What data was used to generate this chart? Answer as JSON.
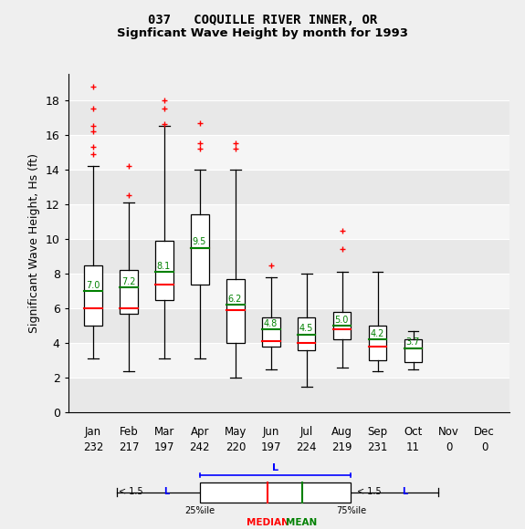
{
  "title1": "037   COQUILLE RIVER INNER, OR",
  "title2": "Signficant Wave Height by month for 1993",
  "ylabel": "Significant Wave Height, Hs (ft)",
  "months": [
    "Jan",
    "Feb",
    "Mar",
    "Apr",
    "May",
    "Jun",
    "Jul",
    "Aug",
    "Sep",
    "Oct",
    "Nov",
    "Dec"
  ],
  "counts": [
    232,
    217,
    197,
    242,
    220,
    197,
    224,
    219,
    231,
    11,
    0,
    0
  ],
  "boxes": [
    {
      "q1": 5.0,
      "median": 6.0,
      "q3": 8.5,
      "whislo": 3.1,
      "whishi": 14.2,
      "mean": 7.0,
      "fliers": [
        14.9,
        15.3,
        16.2,
        16.5,
        17.5,
        18.8
      ]
    },
    {
      "q1": 5.7,
      "median": 6.0,
      "q3": 8.2,
      "whislo": 2.4,
      "whishi": 12.1,
      "mean": 7.2,
      "fliers": [
        12.5,
        14.2
      ]
    },
    {
      "q1": 6.5,
      "median": 7.4,
      "q3": 9.9,
      "whislo": 3.1,
      "whishi": 16.5,
      "mean": 8.1,
      "fliers": [
        16.6,
        17.5,
        18.0
      ]
    },
    {
      "q1": 7.4,
      "median": 9.5,
      "q3": 11.4,
      "whislo": 3.1,
      "whishi": 14.0,
      "mean": 9.5,
      "fliers": [
        15.2,
        15.5,
        16.7
      ]
    },
    {
      "q1": 4.0,
      "median": 5.9,
      "q3": 7.7,
      "whislo": 2.0,
      "whishi": 14.0,
      "mean": 6.2,
      "fliers": [
        15.2,
        15.5
      ]
    },
    {
      "q1": 3.8,
      "median": 4.1,
      "q3": 5.5,
      "whislo": 2.5,
      "whishi": 7.8,
      "mean": 4.8,
      "fliers": [
        8.5
      ]
    },
    {
      "q1": 3.6,
      "median": 4.0,
      "q3": 5.5,
      "whislo": 1.5,
      "whishi": 8.0,
      "mean": 4.5,
      "fliers": []
    },
    {
      "q1": 4.2,
      "median": 4.8,
      "q3": 5.8,
      "whislo": 2.6,
      "whishi": 8.1,
      "mean": 5.0,
      "fliers": [
        9.4,
        10.5
      ]
    },
    {
      "q1": 3.0,
      "median": 3.8,
      "q3": 5.0,
      "whislo": 2.4,
      "whishi": 8.1,
      "mean": 4.2,
      "fliers": []
    },
    {
      "q1": 2.9,
      "median": 3.7,
      "q3": 4.2,
      "whislo": 2.5,
      "whishi": 4.7,
      "mean": 3.7,
      "fliers": []
    },
    null,
    null
  ],
  "ylim": [
    0,
    19.5
  ],
  "yticks": [
    0,
    2,
    4,
    6,
    8,
    10,
    12,
    14,
    16,
    18
  ],
  "bg_color": "#efefef",
  "stripe_colors": [
    "#e8e8e8",
    "#f5f5f5"
  ],
  "box_facecolor": "white",
  "box_edgecolor": "black",
  "median_color": "red",
  "mean_color": "green",
  "flier_color": "red",
  "flier_marker": "+"
}
